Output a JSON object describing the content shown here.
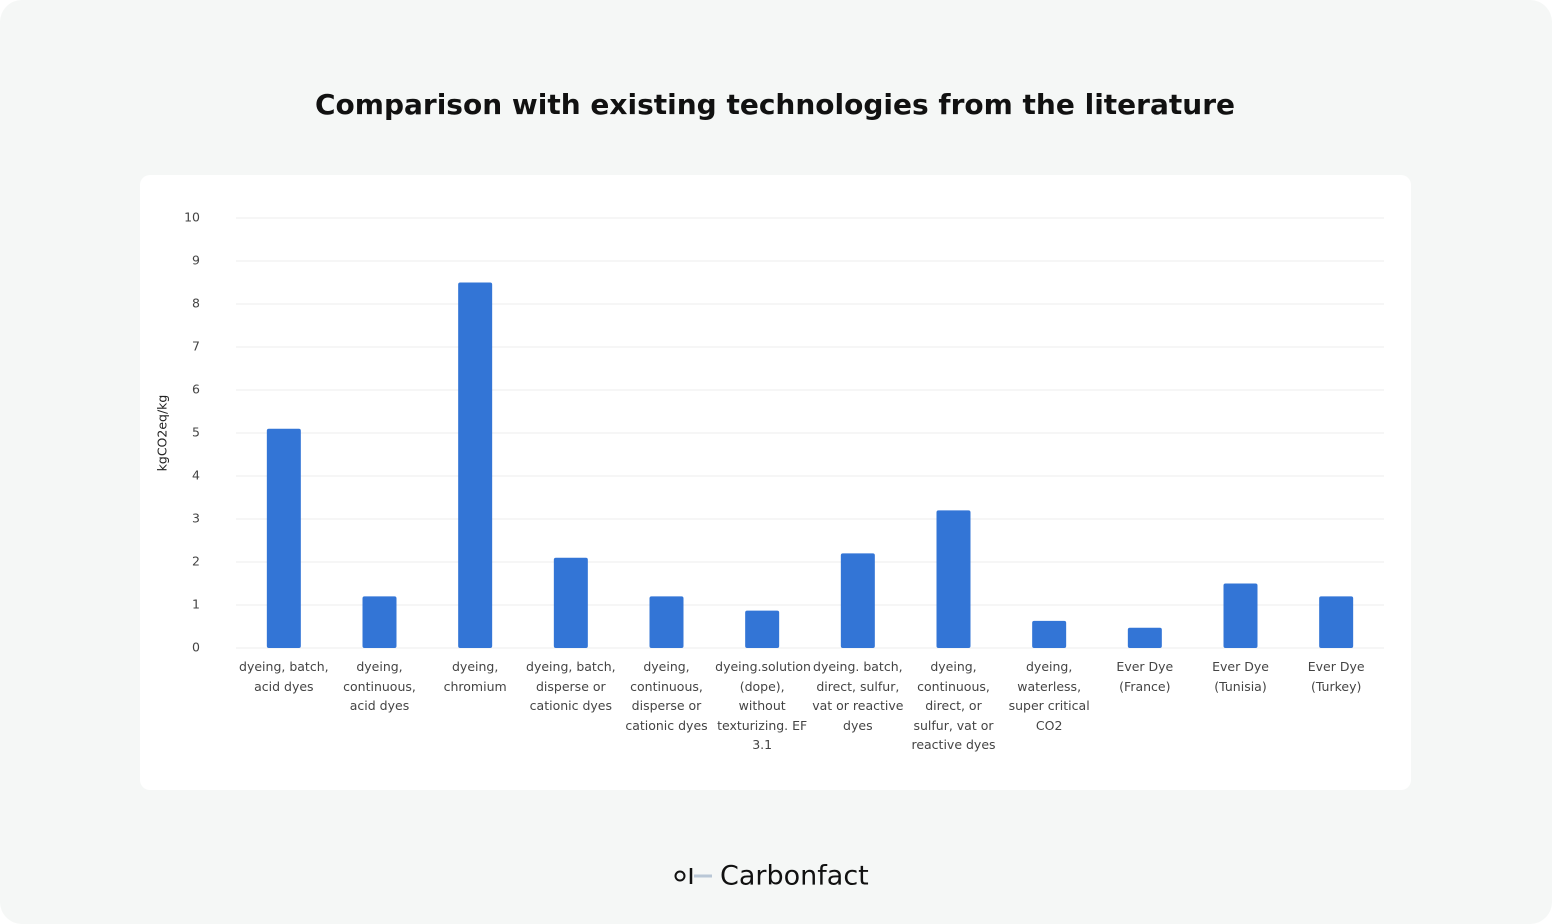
{
  "chart_data": {
    "type": "bar",
    "title": "Comparison with existing technologies from the literature",
    "y_label": "kgCO2eq/kg",
    "categories": [
      "dyeing, batch, acid dyes",
      "dyeing, continuous, acid dyes",
      "dyeing, chromium",
      "dyeing, batch, disperse or cationic dyes",
      "dyeing, continuous, disperse or cationic dyes",
      "dyeing.solution (dope), without texturizing. EF 3.1",
      "dyeing. batch, direct, sulfur, vat or reactive dyes",
      "dyeing, continuous, direct, or sulfur, vat or reactive dyes",
      "dyeing, waterless, super critical CO2",
      "Ever Dye (France)",
      "Ever Dye (Tunisia)",
      "Ever Dye (Turkey)"
    ],
    "values": [
      5.1,
      1.2,
      8.5,
      2.1,
      1.2,
      0.87,
      2.2,
      3.2,
      0.63,
      0.47,
      1.5,
      1.2
    ],
    "color": "#3375d6",
    "ylim": [
      0,
      10
    ],
    "yticks": [
      0,
      1,
      2,
      3,
      4,
      5,
      6,
      7,
      8,
      9,
      10
    ],
    "grid": true
  },
  "footer": {
    "brand": "Carbonfact"
  }
}
